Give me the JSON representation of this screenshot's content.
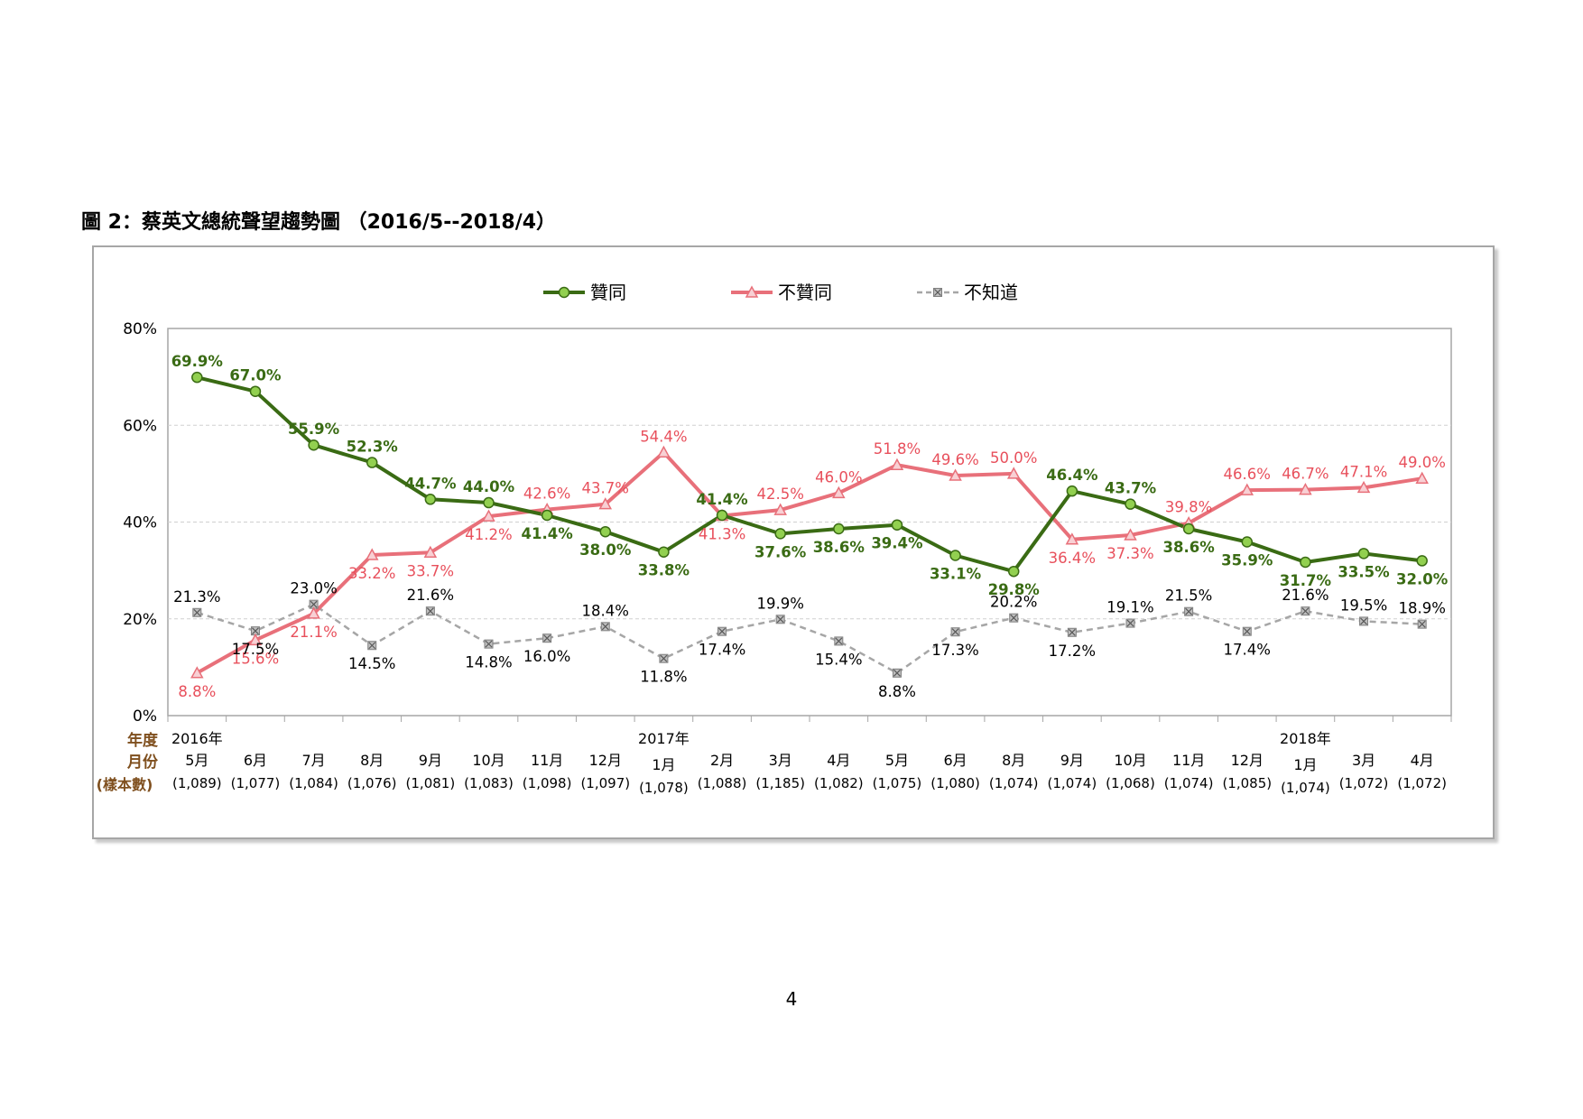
{
  "title": "圖 2：蔡英文總統聲望趨勢圖 （2016/5--2018/4）",
  "page_number": "4",
  "chart_data": {
    "type": "line",
    "title": "圖 2：蔡英文總統聲望趨勢圖 （2016/5--2018/4）",
    "ylim": [
      0,
      80
    ],
    "yticks": [
      "0%",
      "20%",
      "40%",
      "60%",
      "80%"
    ],
    "grid": true,
    "legend_position": "top",
    "row_labels": {
      "year": "年度",
      "month": "月份",
      "sample": "(樣本數)"
    },
    "categories": [
      {
        "year": "2016年",
        "month": "5月",
        "sample": "(1,089)"
      },
      {
        "year": "",
        "month": "6月",
        "sample": "(1,077)"
      },
      {
        "year": "",
        "month": "7月",
        "sample": "(1,084)"
      },
      {
        "year": "",
        "month": "8月",
        "sample": "(1,076)"
      },
      {
        "year": "",
        "month": "9月",
        "sample": "(1,081)"
      },
      {
        "year": "",
        "month": "10月",
        "sample": "(1,083)"
      },
      {
        "year": "",
        "month": "11月",
        "sample": "(1,098)"
      },
      {
        "year": "",
        "month": "12月",
        "sample": "(1,097)"
      },
      {
        "year": "2017年",
        "month": "1月",
        "sample": "(1,078)"
      },
      {
        "year": "",
        "month": "2月",
        "sample": "(1,088)"
      },
      {
        "year": "",
        "month": "3月",
        "sample": "(1,185)"
      },
      {
        "year": "",
        "month": "4月",
        "sample": "(1,082)"
      },
      {
        "year": "",
        "month": "5月",
        "sample": "(1,075)"
      },
      {
        "year": "",
        "month": "6月",
        "sample": "(1,080)"
      },
      {
        "year": "",
        "month": "8月",
        "sample": "(1,074)"
      },
      {
        "year": "",
        "month": "9月",
        "sample": "(1,074)"
      },
      {
        "year": "",
        "month": "10月",
        "sample": "(1,068)"
      },
      {
        "year": "",
        "month": "11月",
        "sample": "(1,074)"
      },
      {
        "year": "",
        "month": "12月",
        "sample": "(1,085)"
      },
      {
        "year": "2018年",
        "month": "1月",
        "sample": "(1,074)"
      },
      {
        "year": "",
        "month": "3月",
        "sample": "(1,072)"
      },
      {
        "year": "",
        "month": "4月",
        "sample": "(1,072)"
      }
    ],
    "series": [
      {
        "name": "贊同",
        "color": "#3a6b14",
        "marker_fill": "#92d050",
        "marker": "circle",
        "line_style": "solid",
        "values": [
          69.9,
          67.0,
          55.9,
          52.3,
          44.7,
          44.0,
          41.4,
          38.0,
          33.8,
          41.4,
          37.6,
          38.6,
          39.4,
          33.1,
          29.8,
          46.4,
          43.7,
          38.6,
          35.9,
          31.7,
          33.5,
          32.0
        ],
        "labels": [
          "69.9%",
          "67.0%",
          "55.9%",
          "52.3%",
          "44.7%",
          "44.0%",
          "41.4%",
          "38.0%",
          "33.8%",
          "41.4%",
          "37.6%",
          "38.6%",
          "39.4%",
          "33.1%",
          "29.8%",
          "46.4%",
          "43.7%",
          "38.6%",
          "35.9%",
          "31.7%",
          "33.5%",
          "32.0%"
        ]
      },
      {
        "name": "不贊同",
        "color": "#e8707a",
        "marker_fill": "#f8d0d4",
        "marker": "triangle",
        "line_style": "solid",
        "values": [
          8.8,
          15.6,
          21.1,
          33.2,
          33.7,
          41.2,
          42.6,
          43.7,
          54.4,
          41.3,
          42.5,
          46.0,
          51.8,
          49.6,
          50.0,
          36.4,
          37.3,
          39.8,
          46.6,
          46.7,
          47.1,
          49.0
        ],
        "labels": [
          "8.8%",
          "15.6%",
          "21.1%",
          "33.2%",
          "33.7%",
          "41.2%",
          "42.6%",
          "43.7%",
          "54.4%",
          "41.3%",
          "42.5%",
          "46.0%",
          "51.8%",
          "49.6%",
          "50.0%",
          "36.4%",
          "37.3%",
          "39.8%",
          "46.6%",
          "46.7%",
          "47.1%",
          "49.0%"
        ]
      },
      {
        "name": "不知道",
        "color": "#a6a6a6",
        "marker_fill": "#bfbfbf",
        "marker": "x-square",
        "line_style": "dashed",
        "values": [
          21.3,
          17.5,
          23.0,
          14.5,
          21.6,
          14.8,
          16.0,
          18.4,
          11.8,
          17.4,
          19.9,
          15.4,
          8.8,
          17.3,
          20.2,
          17.2,
          19.1,
          21.5,
          17.4,
          21.6,
          19.5,
          18.9
        ],
        "labels": [
          "21.3%",
          "17.5%",
          "23.0%",
          "14.5%",
          "21.6%",
          "14.8%",
          "16.0%",
          "18.4%",
          "11.8%",
          "17.4%",
          "19.9%",
          "15.4%",
          "8.8%",
          "17.3%",
          "20.2%",
          "17.2%",
          "19.1%",
          "21.5%",
          "17.4%",
          "21.6%",
          "19.5%",
          "18.9%"
        ]
      }
    ]
  }
}
